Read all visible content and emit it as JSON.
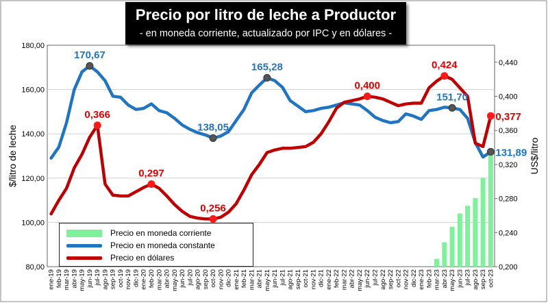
{
  "title": "Precio por litro de leche a Productor",
  "subtitle": "- en moneda corriente, actualizado por IPC y en dólares -",
  "chart_data": {
    "type": "line",
    "categories": [
      "ene-19",
      "feb-19",
      "mar-19",
      "abr-19",
      "may-19",
      "jun-19",
      "jul-19",
      "ago-19",
      "sep-19",
      "oct-19",
      "nov-19",
      "dic-19",
      "ene-20",
      "feb-20",
      "mar-20",
      "abr-20",
      "may-20",
      "jun-20",
      "jul-20",
      "ago-20",
      "sep-20",
      "oct-20",
      "nov-20",
      "dic-20",
      "ene-21",
      "feb-21",
      "mar-21",
      "abr-21",
      "may-21",
      "jun-21",
      "jul-21",
      "ago-21",
      "sep-21",
      "oct-21",
      "nov-21",
      "dic-21",
      "ene-22",
      "feb-22",
      "mar-22",
      "abr-22",
      "may-22",
      "jun-22",
      "jul-22",
      "ago-22",
      "sep-22",
      "oct-22",
      "nov-22",
      "dic-22",
      "ene-23",
      "feb-23",
      "mar-23",
      "abr-23",
      "may-23",
      "jun-23",
      "jul-23",
      "ago-23",
      "sep-23",
      "oct-23"
    ],
    "ylabel": "$/litro de leche",
    "y2label": "US$/litro",
    "ylim": [
      80,
      180
    ],
    "y2lim": [
      0.2,
      0.46
    ],
    "yticks": [
      "80,00",
      "100,00",
      "120,00",
      "140,00",
      "160,00",
      "180,00"
    ],
    "y2ticks": [
      "0,200",
      "0,240",
      "0,280",
      "0,320",
      "0,360",
      "0,400",
      "0,440"
    ],
    "series": [
      {
        "name": "Precio en moneda corriente",
        "type": "bar",
        "axis": "left",
        "color": "#7ef29a",
        "values": [
          null,
          null,
          null,
          null,
          null,
          null,
          null,
          null,
          null,
          null,
          null,
          null,
          null,
          null,
          null,
          null,
          null,
          null,
          null,
          null,
          null,
          null,
          null,
          null,
          null,
          null,
          null,
          null,
          null,
          null,
          null,
          null,
          null,
          null,
          null,
          null,
          null,
          null,
          null,
          null,
          null,
          null,
          null,
          null,
          null,
          null,
          null,
          null,
          null,
          null,
          83.5,
          91,
          98,
          104,
          107.5,
          111,
          120,
          131.89
        ]
      },
      {
        "name": "Precio en moneda constante",
        "type": "line",
        "axis": "left",
        "color": "#1f74c4",
        "values": [
          129,
          134,
          145,
          160,
          168,
          170.67,
          168,
          164,
          157,
          156.5,
          153,
          151,
          151.5,
          153.5,
          150.5,
          149.5,
          147,
          144,
          142,
          140.5,
          139.5,
          138.05,
          139,
          141,
          146,
          151,
          158.5,
          162,
          165.28,
          164,
          161,
          155,
          152.5,
          150,
          150.5,
          151.5,
          152,
          153,
          154,
          153.5,
          153,
          150.5,
          147.5,
          146,
          145,
          145.5,
          149,
          148,
          146.5,
          150.5,
          151,
          152,
          151.7,
          151,
          147,
          136,
          129.5,
          131.89
        ]
      },
      {
        "name": "Precio en dólares",
        "type": "line",
        "axis": "right",
        "color": "#c00000",
        "values": [
          0.262,
          0.278,
          0.292,
          0.316,
          0.332,
          0.352,
          0.366,
          0.297,
          0.284,
          0.283,
          0.283,
          0.288,
          0.293,
          0.297,
          0.292,
          0.283,
          0.273,
          0.265,
          0.259,
          0.257,
          0.256,
          0.256,
          0.258,
          0.264,
          0.274,
          0.29,
          0.308,
          0.32,
          0.334,
          0.337,
          0.339,
          0.339,
          0.34,
          0.341,
          0.346,
          0.356,
          0.37,
          0.386,
          0.393,
          0.395,
          0.397,
          0.4,
          0.399,
          0.397,
          0.393,
          0.389,
          0.391,
          0.392,
          0.392,
          0.41,
          0.418,
          0.424,
          0.42,
          0.41,
          0.4,
          0.345,
          0.341,
          0.377
        ]
      }
    ],
    "annotations": [
      {
        "series": 1,
        "index": 5,
        "text": "170,67",
        "color": "#1f74c4",
        "pos": "above"
      },
      {
        "series": 1,
        "index": 21,
        "text": "138,05",
        "color": "#1f74c4",
        "pos": "above"
      },
      {
        "series": 1,
        "index": 28,
        "text": "165,28",
        "color": "#1f74c4",
        "pos": "above"
      },
      {
        "series": 1,
        "index": 52,
        "text": "151,70",
        "color": "#1f74c4",
        "pos": "above"
      },
      {
        "series": 0,
        "index": 57,
        "text": "131,89",
        "color": "#1f74c4",
        "pos": "right"
      },
      {
        "series": 2,
        "index": 6,
        "text": "0,366",
        "color": "#e00000",
        "pos": "above"
      },
      {
        "series": 2,
        "index": 13,
        "text": "0,297",
        "color": "#e00000",
        "pos": "above"
      },
      {
        "series": 2,
        "index": 21,
        "text": "0,256",
        "color": "#e00000",
        "pos": "above"
      },
      {
        "series": 2,
        "index": 41,
        "text": "0,400",
        "color": "#e00000",
        "pos": "above"
      },
      {
        "series": 2,
        "index": 51,
        "text": "0,424",
        "color": "#e00000",
        "pos": "above"
      },
      {
        "series": 2,
        "index": 57,
        "text": "0,377",
        "color": "#e00000",
        "pos": "right"
      }
    ]
  },
  "legend": [
    {
      "label": "Precio en moneda corriente",
      "kind": "bar",
      "color": "#7ef29a"
    },
    {
      "label": "Precio en moneda constante",
      "kind": "line",
      "color": "#1f74c4"
    },
    {
      "label": "Precio en dólares",
      "kind": "line",
      "color": "#c00000"
    }
  ]
}
